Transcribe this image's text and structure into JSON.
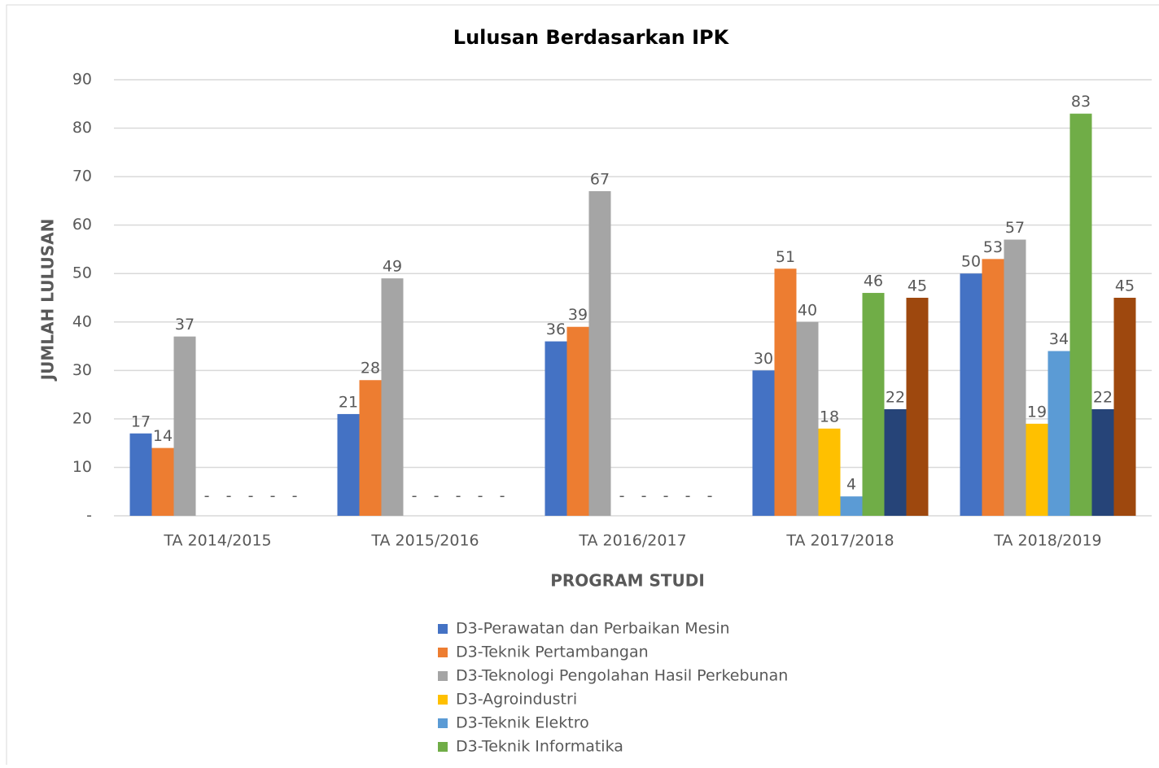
{
  "chart_data": {
    "type": "bar",
    "title": "Lulusan Berdasarkan IPK",
    "xlabel": "PROGRAM STUDI",
    "ylabel": "JUMLAH LULUSAN",
    "categories": [
      "TA 2014/2015",
      "TA 2015/2016",
      "TA 2016/2017",
      "TA 2017/2018",
      "TA 2018/2019"
    ],
    "series": [
      {
        "name": "D3-Perawatan dan Perbaikan Mesin",
        "color": "#4472c4",
        "values": [
          17,
          21,
          36,
          30,
          50
        ]
      },
      {
        "name": "D3-Teknik Pertambangan",
        "color": "#ed7d31",
        "values": [
          14,
          28,
          39,
          51,
          53
        ]
      },
      {
        "name": "D3-Teknologi Pengolahan Hasil Perkebunan",
        "color": "#a5a5a5",
        "values": [
          37,
          49,
          67,
          40,
          57
        ]
      },
      {
        "name": "D3-Agroindustri",
        "color": "#ffc000",
        "values": [
          0,
          0,
          0,
          18,
          19
        ],
        "value_labels": [
          "-",
          "-",
          "-",
          "18",
          "19"
        ]
      },
      {
        "name": "D3-Teknik Elektro",
        "color": "#5b9bd5",
        "values": [
          0,
          0,
          0,
          4,
          34
        ],
        "value_labels": [
          "-",
          "-",
          "-",
          "4",
          "34"
        ]
      },
      {
        "name": "D3-Teknik Informatika",
        "color": "#70ad47",
        "values": [
          0,
          0,
          0,
          46,
          83
        ],
        "value_labels": [
          "-",
          "-",
          "-",
          "46",
          "83"
        ]
      },
      {
        "color": "#264478",
        "values": [
          0,
          0,
          0,
          22,
          22
        ],
        "value_labels": [
          "-",
          "-",
          "-",
          "22",
          "22"
        ]
      },
      {
        "color": "#9e480e",
        "values": [
          0,
          0,
          0,
          45,
          45
        ],
        "value_labels": [
          "-",
          "-",
          "-",
          "45",
          "45"
        ]
      }
    ],
    "ylim": [
      0,
      90
    ],
    "yticks": [
      {
        "value": 0,
        "label": "-"
      },
      10,
      20,
      30,
      40,
      50,
      60,
      70,
      80,
      90
    ],
    "grid": true,
    "legend": "bottom"
  }
}
